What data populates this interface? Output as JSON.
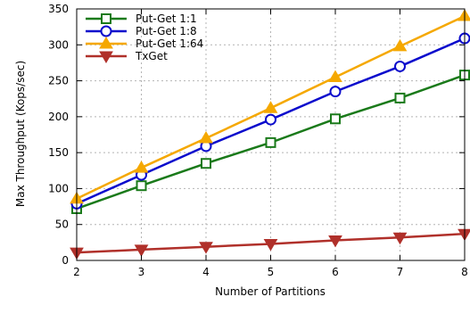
{
  "chart_data": {
    "type": "line",
    "xlabel": "Number of Partitions",
    "ylabel": "Max Throughput (Kops/sec)",
    "x": [
      2,
      3,
      4,
      5,
      6,
      7,
      8
    ],
    "xlim": [
      2,
      8
    ],
    "ylim": [
      0,
      350
    ],
    "xticks": [
      2,
      3,
      4,
      5,
      6,
      7,
      8
    ],
    "yticks": [
      0,
      50,
      100,
      150,
      200,
      250,
      300,
      350
    ],
    "grid": true,
    "legend_position": "top-left",
    "series": [
      {
        "name": "Put-Get 1:1",
        "color": "#1a7a1a",
        "marker": "square",
        "values": [
          72,
          104,
          135,
          164,
          197,
          226,
          258
        ]
      },
      {
        "name": "Put-Get 1:8",
        "color": "#0a0acc",
        "marker": "circle",
        "values": [
          79,
          119,
          159,
          196,
          235,
          270,
          309
        ]
      },
      {
        "name": "Put-Get 1:64",
        "color": "#f5a800",
        "marker": "triangle-up",
        "values": [
          86,
          129,
          170,
          212,
          255,
          298,
          340
        ]
      },
      {
        "name": "TxGet",
        "color": "#b0302a",
        "marker": "triangle-down",
        "values": [
          11,
          15,
          19,
          23,
          28,
          32,
          37
        ]
      }
    ]
  }
}
